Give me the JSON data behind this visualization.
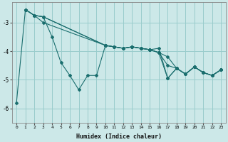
{
  "xlabel": "Humidex (Indice chaleur)",
  "bg_color": "#cce8e8",
  "grid_color": "#99cccc",
  "line_color": "#1a6e6e",
  "marker_color": "#1a6e6e",
  "series": [
    {
      "x": [
        0,
        1,
        2,
        3,
        4,
        5,
        6,
        7,
        8,
        9,
        10,
        11,
        12,
        13,
        14,
        15,
        16,
        17,
        18,
        19,
        20,
        21,
        22,
        23
      ],
      "y": [
        -5.8,
        -2.55,
        -2.75,
        -2.8,
        -3.5,
        -4.4,
        -4.85,
        -5.35,
        -4.85,
        -4.85,
        -3.8,
        -3.85,
        -3.9,
        -3.85,
        -3.9,
        -3.95,
        -4.05,
        -4.5,
        -4.6,
        -4.8,
        -4.55,
        -4.75,
        -4.85,
        -4.65
      ]
    },
    {
      "x": [
        1,
        2,
        3,
        10,
        11,
        12,
        13,
        14,
        15,
        16,
        17,
        18,
        19,
        20,
        21,
        22,
        23
      ],
      "y": [
        -2.55,
        -2.75,
        -2.8,
        -3.8,
        -3.85,
        -3.9,
        -3.85,
        -3.9,
        -3.95,
        -4.05,
        -4.95,
        -4.6,
        -4.8,
        -4.55,
        -4.75,
        -4.85,
        -4.65
      ]
    },
    {
      "x": [
        1,
        2,
        3,
        10,
        11,
        12,
        13,
        14,
        15,
        16,
        17,
        18,
        19,
        20,
        21,
        22,
        23
      ],
      "y": [
        -2.55,
        -2.75,
        -2.8,
        -3.8,
        -3.85,
        -3.9,
        -3.85,
        -3.9,
        -3.95,
        -3.9,
        -4.95,
        -4.6,
        -4.8,
        -4.55,
        -4.75,
        -4.85,
        -4.65
      ]
    },
    {
      "x": [
        1,
        2,
        3,
        10,
        11,
        12,
        13,
        14,
        15,
        16,
        17,
        18,
        19,
        20,
        21,
        22,
        23
      ],
      "y": [
        -2.55,
        -2.75,
        -3.0,
        -3.8,
        -3.85,
        -3.9,
        -3.85,
        -3.9,
        -3.95,
        -4.05,
        -4.2,
        -4.6,
        -4.8,
        -4.55,
        -4.75,
        -4.85,
        -4.65
      ]
    }
  ],
  "xlim": [
    -0.5,
    23.5
  ],
  "ylim": [
    -6.5,
    -2.3
  ],
  "yticks": [
    -6,
    -5,
    -4,
    -3
  ],
  "xticks": [
    0,
    1,
    2,
    3,
    4,
    5,
    6,
    7,
    8,
    9,
    10,
    11,
    12,
    13,
    14,
    15,
    16,
    17,
    18,
    19,
    20,
    21,
    22,
    23
  ]
}
